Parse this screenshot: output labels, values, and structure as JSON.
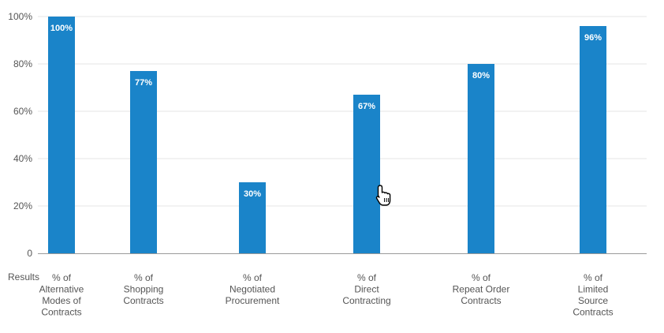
{
  "chart_data": {
    "type": "bar",
    "categories": [
      [
        "% of",
        "Alternative",
        "Modes of",
        "Contracts"
      ],
      [
        "% of",
        "Shopping",
        "Contracts"
      ],
      [
        "% of",
        "Negotiated",
        "Procurement"
      ],
      [
        "% of",
        "Direct",
        "Contracting"
      ],
      [
        "% of",
        "Repeat Order",
        "Contracts"
      ],
      [
        "% of",
        "Limited",
        "Source",
        "Contracts"
      ]
    ],
    "values": [
      100,
      77,
      30,
      67,
      80,
      96
    ],
    "data_labels": [
      "100%",
      "77%",
      "30%",
      "67%",
      "80%",
      "96%"
    ],
    "ylim": [
      0,
      100
    ],
    "y_ticks": [
      0,
      20,
      40,
      60,
      80,
      100
    ],
    "y_tick_labels": [
      "0",
      "20%",
      "40%",
      "60%",
      "80%",
      "100%"
    ],
    "x_axis_row_label": "Results",
    "grid": true,
    "bar_color": "#1a84c9",
    "grid_color": "#e6e6e6",
    "axis_color": "#9a9a9a",
    "text_color": "#555555",
    "label_color": "#ffffff"
  },
  "cursor": {
    "icon": "hand-pointer-icon"
  }
}
